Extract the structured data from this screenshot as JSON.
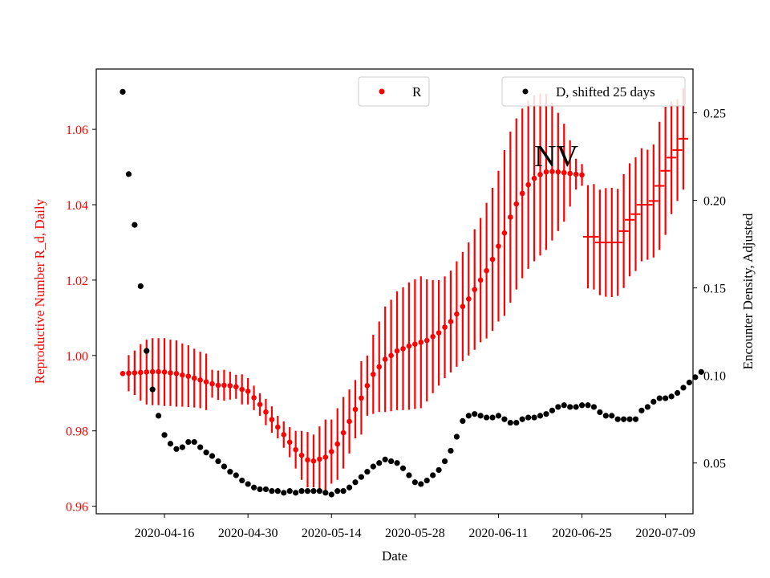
{
  "chart_data": {
    "type": "scatter",
    "annotation": "NV",
    "xlabel": "Date",
    "x_tick_labels": [
      "2020-04-16",
      "2020-04-30",
      "2020-05-14",
      "2020-05-28",
      "2020-06-11",
      "2020-06-25",
      "2020-07-09"
    ],
    "x_start": "2020-04-09",
    "left_axis": {
      "label": "Reproductive Number R_d, Daily",
      "color": "#ff0000",
      "ylim": [
        0.958,
        1.076
      ],
      "ticks": [
        0.96,
        0.98,
        1.0,
        1.02,
        1.04,
        1.06
      ],
      "tick_labels": [
        "0.96",
        "0.98",
        "1.00",
        "1.02",
        "1.04",
        "1.06"
      ]
    },
    "right_axis": {
      "label": "Encounter Density, Adjusted",
      "color": "#000000",
      "ylim": [
        0.021,
        0.275
      ],
      "ticks": [
        0.05,
        0.1,
        0.15,
        0.2,
        0.25
      ],
      "tick_labels": [
        "0.05",
        "0.10",
        "0.15",
        "0.20",
        "0.25"
      ]
    },
    "legends": [
      {
        "label": "R",
        "color": "#ff0000",
        "placement": "top-center"
      },
      {
        "label": "D, shifted 25 days",
        "color": "#000000",
        "placement": "top-right"
      }
    ],
    "series": [
      {
        "name": "R",
        "axis": "left",
        "color": "#ff0000",
        "start": "2020-04-09",
        "points": [
          [
            0.9952,
            0.9952,
            0.9952
          ],
          [
            0.9953,
            0.9905,
            1.0001
          ],
          [
            0.9954,
            0.9895,
            1.0013
          ],
          [
            0.9955,
            0.988,
            1.003
          ],
          [
            0.9956,
            0.987,
            1.0042
          ],
          [
            0.9957,
            0.9868,
            1.0046
          ],
          [
            0.9957,
            0.9868,
            1.0046
          ],
          [
            0.9956,
            0.9866,
            1.0046
          ],
          [
            0.9954,
            0.9866,
            1.0042
          ],
          [
            0.9952,
            0.9864,
            1.004
          ],
          [
            0.9948,
            0.9864,
            1.0032
          ],
          [
            0.9945,
            0.9863,
            1.0027
          ],
          [
            0.994,
            0.9862,
            1.0018
          ],
          [
            0.9935,
            0.986,
            1.001
          ],
          [
            0.993,
            0.9855,
            1.0005
          ],
          [
            0.9925,
            0.9888,
            0.9962
          ],
          [
            0.9921,
            0.9882,
            0.996
          ],
          [
            0.9921,
            0.988,
            0.9962
          ],
          [
            0.992,
            0.9883,
            0.9957
          ],
          [
            0.9917,
            0.9885,
            0.9949
          ],
          [
            0.991,
            0.987,
            0.995
          ],
          [
            0.9905,
            0.987,
            0.994
          ],
          [
            0.9888,
            0.9855,
            0.992
          ],
          [
            0.987,
            0.984,
            0.99
          ],
          [
            0.985,
            0.9815,
            0.9885
          ],
          [
            0.983,
            0.9795,
            0.9865
          ],
          [
            0.981,
            0.978,
            0.984
          ],
          [
            0.979,
            0.9755,
            0.9825
          ],
          [
            0.977,
            0.973,
            0.981
          ],
          [
            0.975,
            0.97,
            0.98
          ],
          [
            0.9735,
            0.967,
            0.98
          ],
          [
            0.9723,
            0.965,
            0.9797
          ],
          [
            0.972,
            0.965,
            0.979
          ],
          [
            0.9725,
            0.9638,
            0.9812
          ],
          [
            0.973,
            0.963,
            0.983
          ],
          [
            0.9745,
            0.966,
            0.983
          ],
          [
            0.9765,
            0.967,
            0.986
          ],
          [
            0.9795,
            0.97,
            0.989
          ],
          [
            0.9825,
            0.974,
            0.991
          ],
          [
            0.9857,
            0.978,
            0.9935
          ],
          [
            0.9887,
            0.979,
            0.9985
          ],
          [
            0.992,
            0.984,
            1.0
          ],
          [
            0.995,
            0.9845,
            1.0055
          ],
          [
            0.997,
            0.985,
            1.009
          ],
          [
            0.999,
            0.985,
            1.013
          ],
          [
            1.0,
            0.9852,
            1.0148
          ],
          [
            1.0012,
            0.9855,
            1.017
          ],
          [
            1.0018,
            0.9855,
            1.0181
          ],
          [
            1.0025,
            0.9856,
            1.0194
          ],
          [
            1.003,
            0.9858,
            1.0202
          ],
          [
            1.0035,
            0.986,
            1.021
          ],
          [
            1.004,
            0.9878,
            1.0202
          ],
          [
            1.005,
            0.99,
            1.02
          ],
          [
            1.006,
            0.992,
            1.02
          ],
          [
            1.0075,
            0.994,
            1.021
          ],
          [
            1.009,
            0.9955,
            1.0225
          ],
          [
            1.011,
            0.997,
            1.025
          ],
          [
            1.013,
            0.9985,
            1.0275
          ],
          [
            1.015,
            1.0,
            1.03
          ],
          [
            1.0175,
            1.0015,
            1.0335
          ],
          [
            1.02,
            1.0035,
            1.0365
          ],
          [
            1.0225,
            1.0045,
            1.0405
          ],
          [
            1.0255,
            1.0065,
            1.0445
          ],
          [
            1.029,
            1.009,
            1.049
          ],
          [
            1.0325,
            1.0105,
            1.0545
          ],
          [
            1.0367,
            1.014,
            1.0594
          ],
          [
            1.0402,
            1.0175,
            1.0629
          ],
          [
            1.043,
            1.0205,
            1.0655
          ],
          [
            1.0453,
            1.023,
            1.0676
          ],
          [
            1.047,
            1.025,
            1.069
          ],
          [
            1.048,
            1.0265,
            1.0695
          ],
          [
            1.0487,
            1.028,
            1.0694
          ],
          [
            1.0488,
            1.0305,
            1.0671
          ],
          [
            1.0487,
            1.033,
            1.0644
          ],
          [
            1.0485,
            1.0355,
            1.0615
          ],
          [
            1.0483,
            1.0395,
            1.0571
          ],
          [
            1.0481,
            1.044,
            1.0522
          ],
          [
            1.0479,
            1.045,
            1.0508
          ],
          [
            1.0315,
            1.0178,
            1.0452
          ],
          [
            1.0315,
            1.0175,
            1.0455
          ],
          [
            1.03,
            1.016,
            1.044
          ],
          [
            1.03,
            1.0156,
            1.0444
          ],
          [
            1.03,
            1.0155,
            1.0445
          ],
          [
            1.03,
            1.0158,
            1.0442
          ],
          [
            1.033,
            1.0179,
            1.0481
          ],
          [
            1.036,
            1.021,
            1.051
          ],
          [
            1.0375,
            1.0224,
            1.0526
          ],
          [
            1.04,
            1.025,
            1.055
          ],
          [
            1.04,
            1.0254,
            1.0546
          ],
          [
            1.041,
            1.026,
            1.056
          ],
          [
            1.045,
            1.028,
            1.062
          ],
          [
            1.049,
            1.032,
            1.066
          ],
          [
            1.0525,
            1.0375,
            1.0675
          ],
          [
            1.0545,
            1.041,
            1.068
          ],
          [
            1.0575,
            1.044,
            1.071
          ]
        ]
      },
      {
        "name": "D, shifted 25 days",
        "axis": "right",
        "color": "#000000",
        "start": "2020-04-09",
        "values": [
          0.262,
          0.215,
          0.186,
          0.151,
          0.114,
          0.092,
          0.077,
          0.066,
          0.061,
          0.058,
          0.059,
          0.062,
          0.062,
          0.059,
          0.056,
          0.054,
          0.051,
          0.048,
          0.045,
          0.043,
          0.04,
          0.038,
          0.036,
          0.035,
          0.035,
          0.034,
          0.034,
          0.033,
          0.034,
          0.033,
          0.034,
          0.034,
          0.034,
          0.034,
          0.033,
          0.032,
          0.034,
          0.034,
          0.036,
          0.039,
          0.042,
          0.045,
          0.048,
          0.05,
          0.052,
          0.051,
          0.05,
          0.047,
          0.043,
          0.039,
          0.038,
          0.04,
          0.043,
          0.046,
          0.051,
          0.057,
          0.065,
          0.074,
          0.077,
          0.078,
          0.077,
          0.076,
          0.076,
          0.077,
          0.075,
          0.073,
          0.073,
          0.075,
          0.076,
          0.076,
          0.077,
          0.078,
          0.08,
          0.082,
          0.083,
          0.082,
          0.082,
          0.083,
          0.083,
          0.082,
          0.079,
          0.077,
          0.077,
          0.075,
          0.075,
          0.075,
          0.075,
          0.08,
          0.082,
          0.085,
          0.087,
          0.087,
          0.088,
          0.09,
          0.093,
          0.096,
          0.099,
          0.102
        ]
      }
    ]
  }
}
